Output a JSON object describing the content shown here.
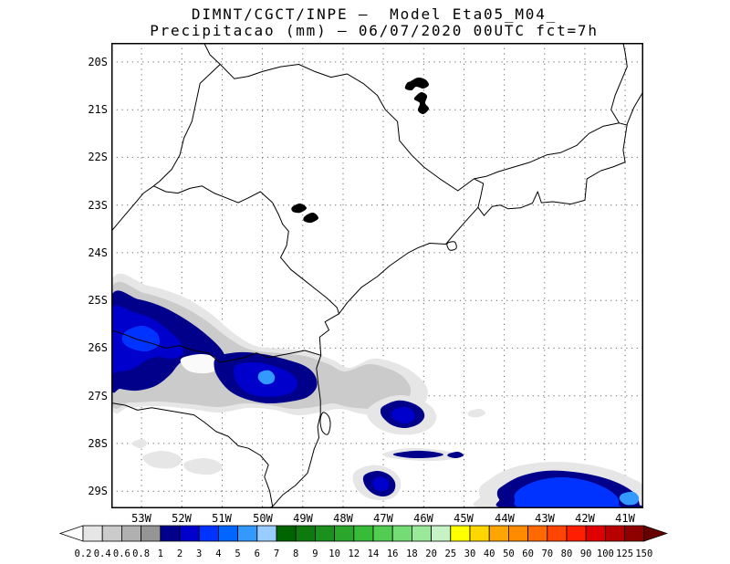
{
  "header": {
    "line1": "DIMNT/CGCT/INPE —  Model Eta05_M04_",
    "line2": "Precipitacao (mm) — 06/07/2020 00UTC fct=7h"
  },
  "axes": {
    "lat_labels": [
      "20S",
      "21S",
      "22S",
      "23S",
      "24S",
      "25S",
      "26S",
      "27S",
      "28S",
      "29S"
    ],
    "lon_labels": [
      "53W",
      "52W",
      "51W",
      "50W",
      "49W",
      "48W",
      "47W",
      "46W",
      "45W",
      "44W",
      "43W",
      "42W",
      "41W"
    ]
  },
  "colorbar": {
    "labels": [
      "0.2",
      "0.4",
      "0.6",
      "0.8",
      "1",
      "2",
      "3",
      "4",
      "5",
      "6",
      "7",
      "8",
      "9",
      "10",
      "12",
      "14",
      "16",
      "18",
      "20",
      "25",
      "30",
      "40",
      "50",
      "60",
      "70",
      "80",
      "90",
      "100",
      "125",
      "150"
    ],
    "colors": [
      "#ffffff",
      "#e6e6e6",
      "#cbcbcb",
      "#b0b0b0",
      "#959595",
      "#00008b",
      "#0000cd",
      "#0033ff",
      "#0066ff",
      "#3399ff",
      "#99ccff",
      "#006400",
      "#0e7a0e",
      "#1c901c",
      "#2aa62a",
      "#38bc38",
      "#52cd52",
      "#74dc74",
      "#9ae89a",
      "#c5f3c5",
      "#ffff00",
      "#ffd700",
      "#ffa500",
      "#ff8c00",
      "#ff6900",
      "#ff4500",
      "#ff1e00",
      "#e00000",
      "#b80000",
      "#8f0000",
      "#660000"
    ]
  },
  "chart_data": {
    "type": "heatmap",
    "title": "DIMNT/CGCT/INPE — Model Eta05_M04_",
    "subtitle": "Precipitacao (mm) — 06/07/2020 00UTC fct=7h",
    "x_ticks": [
      "53W",
      "52W",
      "51W",
      "50W",
      "49W",
      "48W",
      "47W",
      "46W",
      "45W",
      "44W",
      "43W",
      "42W",
      "41W"
    ],
    "y_ticks": [
      "20S",
      "21S",
      "22S",
      "23S",
      "24S",
      "25S",
      "26S",
      "27S",
      "28S",
      "29S"
    ],
    "levels_mm": [
      0.2,
      0.4,
      0.6,
      0.8,
      1,
      2,
      3,
      4,
      5,
      6,
      7,
      8,
      9,
      10,
      12,
      14,
      16,
      18,
      20,
      25,
      30,
      40,
      50,
      60,
      70,
      80,
      90,
      100,
      125,
      150
    ],
    "legend_position": "bottom",
    "grid": "dotted graticule at 1 degree",
    "precip_regions": [
      {
        "location": "53.7W-48.7W, 25.0S-27.5S, west Parana / Santa Catarina border",
        "peak_mm": 5
      },
      {
        "location": "47.3W-45.8W, 27.0S-27.8S, offshore east of Florianopolis",
        "peak_mm": 3
      },
      {
        "location": "46.9W-45.2W, 28.3S-28.6S, thin offshore band",
        "peak_mm": 2
      },
      {
        "location": "47.7W-46.7W, 28.6S-29.3S",
        "peak_mm": 3
      },
      {
        "location": "44.3W-40.6W, 28.7S-29.4S, bottom-right blob clipped by frame",
        "peak_mm": 6
      },
      {
        "location": "53.1W-51.2W, 28.5S-28.8S, light gray coastal patches",
        "peak_mm": 0.8
      }
    ]
  }
}
